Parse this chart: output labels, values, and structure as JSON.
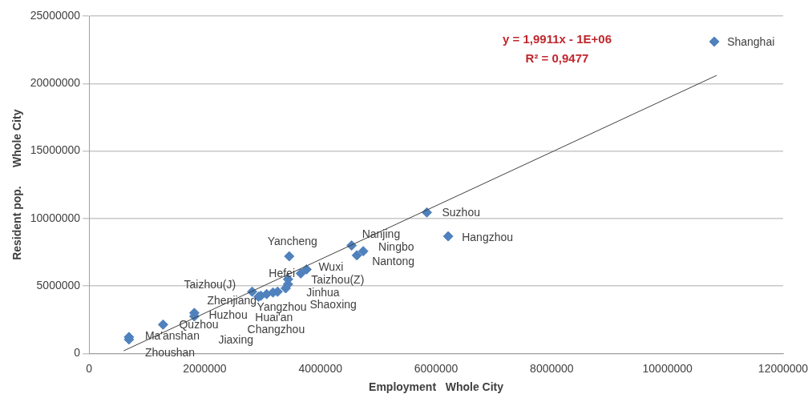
{
  "chart_data": {
    "type": "scatter",
    "xlabel": "Employment   Whole City",
    "ylabel": "Resident pop.      Whole City",
    "xlim": [
      0,
      12000000
    ],
    "xticks": [
      0,
      2000000,
      4000000,
      6000000,
      8000000,
      10000000,
      12000000
    ],
    "ylim": [
      0,
      25000000
    ],
    "yticks": [
      0,
      5000000,
      10000000,
      15000000,
      20000000,
      25000000
    ],
    "grid": "y",
    "legend": false,
    "marker": "diamond",
    "series": [
      {
        "color": "#4f81bd",
        "x": [
          10810000,
          5840000,
          6210000,
          4540000,
          4740000,
          4630000,
          3460000,
          3760000,
          3660000,
          3440000,
          3440000,
          3400000,
          3260000,
          3180000,
          2970000,
          3070000,
          2820000,
          2930000,
          1820000,
          1820000,
          1280000,
          690000,
          690000
        ],
        "values": [
          23100000,
          10450000,
          8680000,
          8000000,
          7580000,
          7270000,
          7200000,
          6230000,
          5930000,
          5500000,
          5130000,
          4830000,
          4580000,
          4520000,
          4280000,
          4400000,
          4580000,
          4200000,
          3000000,
          2750000,
          2140000,
          1220000,
          1040000
        ],
        "value_labels": [
          "Shanghai",
          "Suzhou",
          "Hangzhou",
          "Nanjing",
          "Ningbo",
          "Nantong",
          "Yancheng",
          "Wuxi",
          "Taizhou(Z)",
          "Hefei",
          "Jinhua",
          "Shaoxing",
          "Huai'an",
          "Changzhou",
          "Jiaxing",
          "Yangzhou",
          "Taizhou(J)",
          "Zhenjiang",
          "Huzhou",
          null,
          "Quzhou",
          "Ma'anshan",
          "Zhoushan"
        ]
      },
      {
        "type": "line",
        "color": "#404040",
        "marker": "none",
        "x": [
          600000,
          10850000
        ],
        "values": [
          200000,
          20600000
        ]
      }
    ],
    "annotations": [
      "y = 1,9911x - 1E+06",
      "R² = 0,9477"
    ]
  }
}
